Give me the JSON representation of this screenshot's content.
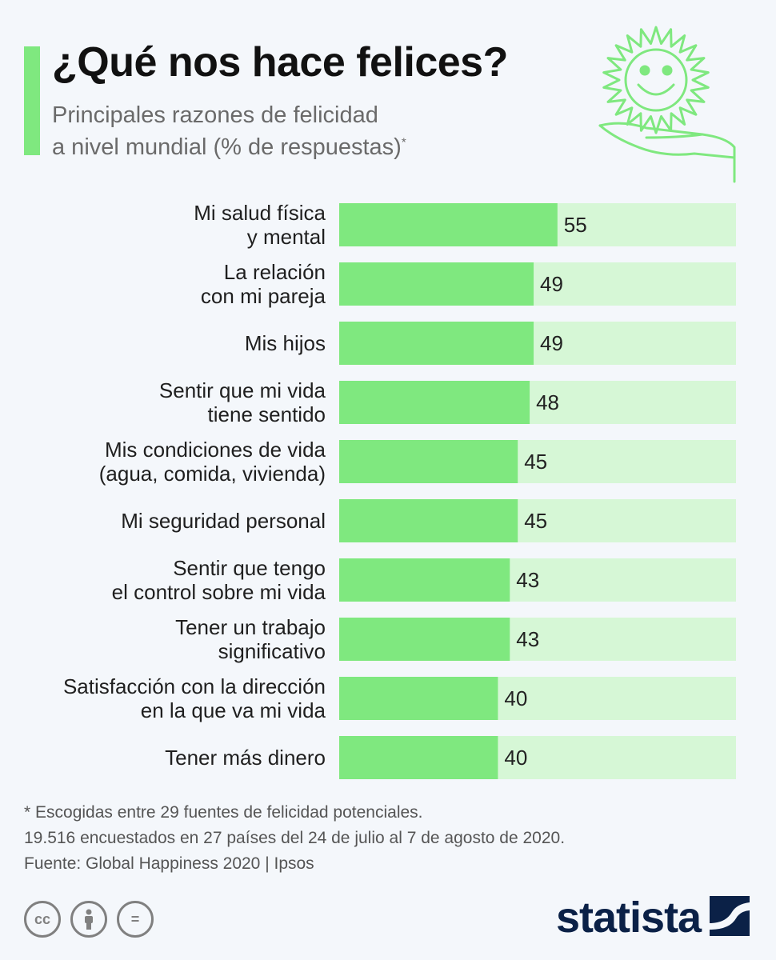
{
  "header": {
    "title": "¿Qué nos hace felices?",
    "subtitle_line1": "Principales razones de felicidad",
    "subtitle_line2": "a nivel mundial (% de respuestas)",
    "subtitle_mark": "*"
  },
  "colors": {
    "bar": "#7fe87f",
    "track": "#d6f7d6",
    "accent": "#7fe87f",
    "brand": "#0b2147"
  },
  "chart_data": {
    "type": "bar",
    "orientation": "horizontal",
    "title": "¿Qué nos hace felices?",
    "xlim": [
      0,
      100
    ],
    "categories": [
      [
        "Mi salud física",
        "y mental"
      ],
      [
        "La relación",
        "con mi pareja"
      ],
      [
        "Mis hijos"
      ],
      [
        "Sentir que mi vida",
        "tiene sentido"
      ],
      [
        "Mis condiciones de vida",
        "(agua, comida, vivienda)"
      ],
      [
        "Mi seguridad personal"
      ],
      [
        "Sentir que tengo",
        "el control sobre mi vida"
      ],
      [
        "Tener un trabajo",
        "significativo"
      ],
      [
        "Satisfacción con la dirección",
        "en la que va mi vida"
      ],
      [
        "Tener más dinero"
      ]
    ],
    "values": [
      55,
      49,
      49,
      48,
      45,
      45,
      43,
      43,
      40,
      40
    ]
  },
  "notes": {
    "line1": "* Escogidas entre 29 fuentes de felicidad potenciales.",
    "line2": "19.516 encuestados en 27 países del 24 de julio al 7 de agosto de 2020.",
    "line3": "Fuente: Global Happiness 2020 | Ipsos"
  },
  "license": {
    "cc": "cc",
    "equal": "="
  },
  "brand": {
    "name": "statista"
  },
  "icons": {
    "illustration": "sun-in-hand-icon",
    "cc": "cc-icon",
    "attribution": "person-icon",
    "noderivs": "equal-icon",
    "brand": "statista-logo-icon"
  }
}
